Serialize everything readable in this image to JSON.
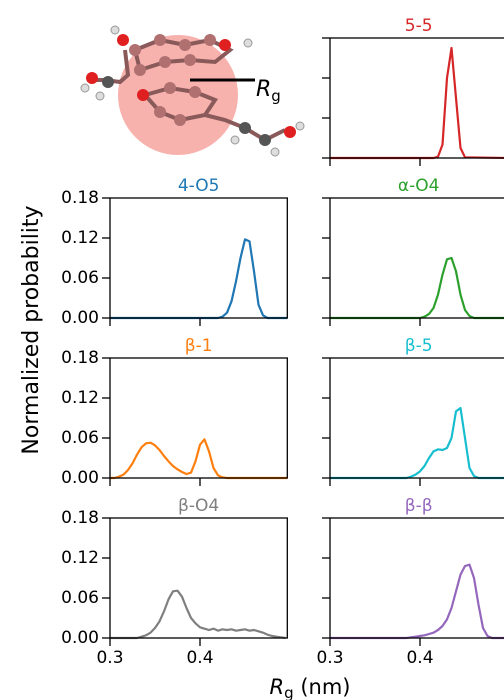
{
  "chart_data": [
    {
      "type": "line",
      "title": "5-5",
      "color": "#d62728",
      "x": [
        0.3,
        0.415,
        0.42,
        0.425,
        0.43,
        0.435,
        0.44,
        0.445,
        0.45,
        0.497
      ],
      "values": [
        0,
        0,
        0.002,
        0.02,
        0.12,
        0.165,
        0.09,
        0.015,
        0.001,
        0
      ],
      "xlim": [
        0.3,
        0.497
      ],
      "ylim": [
        0,
        0.18
      ],
      "xticks": [
        0.3,
        0.4
      ],
      "yticks": [
        0,
        0.06,
        0.12,
        0.18
      ]
    },
    {
      "type": "line",
      "title": "4-O5",
      "color": "#1f77b4",
      "x": [
        0.3,
        0.42,
        0.425,
        0.43,
        0.435,
        0.44,
        0.445,
        0.45,
        0.455,
        0.46,
        0.465,
        0.47,
        0.475,
        0.497
      ],
      "values": [
        0,
        0,
        0.002,
        0.008,
        0.025,
        0.055,
        0.09,
        0.118,
        0.115,
        0.07,
        0.02,
        0.004,
        0,
        0
      ],
      "xlim": [
        0.3,
        0.497
      ],
      "ylim": [
        0,
        0.18
      ],
      "xticks": [
        0.3,
        0.4
      ],
      "yticks": [
        {
          "value": 0,
          "label": "0.00"
        },
        {
          "value": 0.06,
          "label": "0.06"
        },
        {
          "value": 0.12,
          "label": "0.12"
        },
        {
          "value": 0.18,
          "label": "0.18"
        }
      ]
    },
    {
      "type": "line",
      "title": "α-O4",
      "color": "#2ca02c",
      "x": [
        0.3,
        0.4,
        0.405,
        0.41,
        0.415,
        0.42,
        0.425,
        0.43,
        0.435,
        0.44,
        0.445,
        0.45,
        0.455,
        0.46,
        0.497
      ],
      "values": [
        0,
        0,
        0.002,
        0.006,
        0.015,
        0.035,
        0.065,
        0.088,
        0.09,
        0.07,
        0.035,
        0.012,
        0.003,
        0,
        0
      ],
      "xlim": [
        0.3,
        0.497
      ],
      "ylim": [
        0,
        0.18
      ],
      "xticks": [
        0.3,
        0.4
      ],
      "yticks": [
        0,
        0.06,
        0.12,
        0.18
      ]
    },
    {
      "type": "line",
      "title": "β-1",
      "color": "#ff7f0e",
      "x": [
        0.3,
        0.305,
        0.31,
        0.315,
        0.32,
        0.325,
        0.33,
        0.335,
        0.34,
        0.345,
        0.35,
        0.355,
        0.36,
        0.365,
        0.37,
        0.375,
        0.38,
        0.385,
        0.39,
        0.395,
        0.4,
        0.405,
        0.41,
        0.415,
        0.42,
        0.425,
        0.43,
        0.497
      ],
      "values": [
        0,
        0,
        0.002,
        0.005,
        0.012,
        0.022,
        0.035,
        0.046,
        0.052,
        0.053,
        0.049,
        0.042,
        0.033,
        0.025,
        0.018,
        0.013,
        0.009,
        0.006,
        0.008,
        0.025,
        0.05,
        0.058,
        0.04,
        0.015,
        0.004,
        0.001,
        0,
        0
      ],
      "xlim": [
        0.3,
        0.497
      ],
      "ylim": [
        0,
        0.18
      ],
      "xticks": [
        0.3,
        0.4
      ],
      "yticks": [
        {
          "value": 0,
          "label": "0.00"
        },
        {
          "value": 0.06,
          "label": "0.06"
        },
        {
          "value": 0.12,
          "label": "0.12"
        },
        {
          "value": 0.18,
          "label": "0.18"
        }
      ]
    },
    {
      "type": "line",
      "title": "β-5",
      "color": "#17becf",
      "x": [
        0.3,
        0.385,
        0.39,
        0.395,
        0.4,
        0.405,
        0.41,
        0.415,
        0.42,
        0.425,
        0.43,
        0.435,
        0.44,
        0.445,
        0.45,
        0.455,
        0.46,
        0.465,
        0.497
      ],
      "values": [
        0,
        0,
        0.002,
        0.005,
        0.01,
        0.018,
        0.03,
        0.04,
        0.043,
        0.042,
        0.045,
        0.06,
        0.1,
        0.105,
        0.06,
        0.015,
        0.003,
        0,
        0
      ],
      "xlim": [
        0.3,
        0.497
      ],
      "ylim": [
        0,
        0.18
      ],
      "xticks": [
        0.3,
        0.4
      ],
      "yticks": [
        0,
        0.06,
        0.12,
        0.18
      ]
    },
    {
      "type": "line",
      "title": "β-O4",
      "color": "#7f7f7f",
      "x": [
        0.3,
        0.33,
        0.335,
        0.34,
        0.345,
        0.35,
        0.355,
        0.36,
        0.365,
        0.37,
        0.375,
        0.38,
        0.385,
        0.39,
        0.395,
        0.4,
        0.405,
        0.41,
        0.415,
        0.42,
        0.425,
        0.43,
        0.435,
        0.44,
        0.445,
        0.45,
        0.455,
        0.46,
        0.465,
        0.47,
        0.475,
        0.48,
        0.485,
        0.49,
        0.495
      ],
      "values": [
        0,
        0,
        0.002,
        0.004,
        0.008,
        0.015,
        0.025,
        0.04,
        0.058,
        0.07,
        0.071,
        0.062,
        0.045,
        0.03,
        0.022,
        0.016,
        0.014,
        0.012,
        0.014,
        0.011,
        0.013,
        0.012,
        0.013,
        0.011,
        0.012,
        0.013,
        0.011,
        0.012,
        0.01,
        0.008,
        0.005,
        0.003,
        0.002,
        0.001,
        0
      ],
      "xlim": [
        0.3,
        0.497
      ],
      "ylim": [
        0,
        0.18
      ],
      "xticks": [
        0.3,
        0.4
      ],
      "yticks": [
        {
          "value": 0,
          "label": "0.00"
        },
        {
          "value": 0.06,
          "label": "0.06"
        },
        {
          "value": 0.12,
          "label": "0.12"
        },
        {
          "value": 0.18,
          "label": "0.18"
        }
      ]
    },
    {
      "type": "line",
      "title": "β-β",
      "color": "#9467bd",
      "x": [
        0.3,
        0.385,
        0.39,
        0.395,
        0.4,
        0.405,
        0.41,
        0.415,
        0.42,
        0.425,
        0.43,
        0.435,
        0.44,
        0.445,
        0.45,
        0.455,
        0.46,
        0.465,
        0.47,
        0.475,
        0.48,
        0.497
      ],
      "values": [
        0,
        0,
        0.001,
        0.002,
        0.003,
        0.004,
        0.006,
        0.008,
        0.012,
        0.018,
        0.028,
        0.045,
        0.07,
        0.095,
        0.108,
        0.11,
        0.09,
        0.05,
        0.015,
        0.003,
        0,
        0
      ],
      "xlim": [
        0.3,
        0.497
      ],
      "ylim": [
        0,
        0.18
      ],
      "xticks": [
        0.3,
        0.4
      ],
      "yticks": [
        0,
        0.06,
        0.12,
        0.18
      ]
    }
  ],
  "ylabel": "Normalized probability",
  "xlabel": {
    "symbol": "R",
    "subscript": "g",
    "unit": "(nm)"
  },
  "inset": {
    "symbol": "R",
    "subscript": "g"
  }
}
